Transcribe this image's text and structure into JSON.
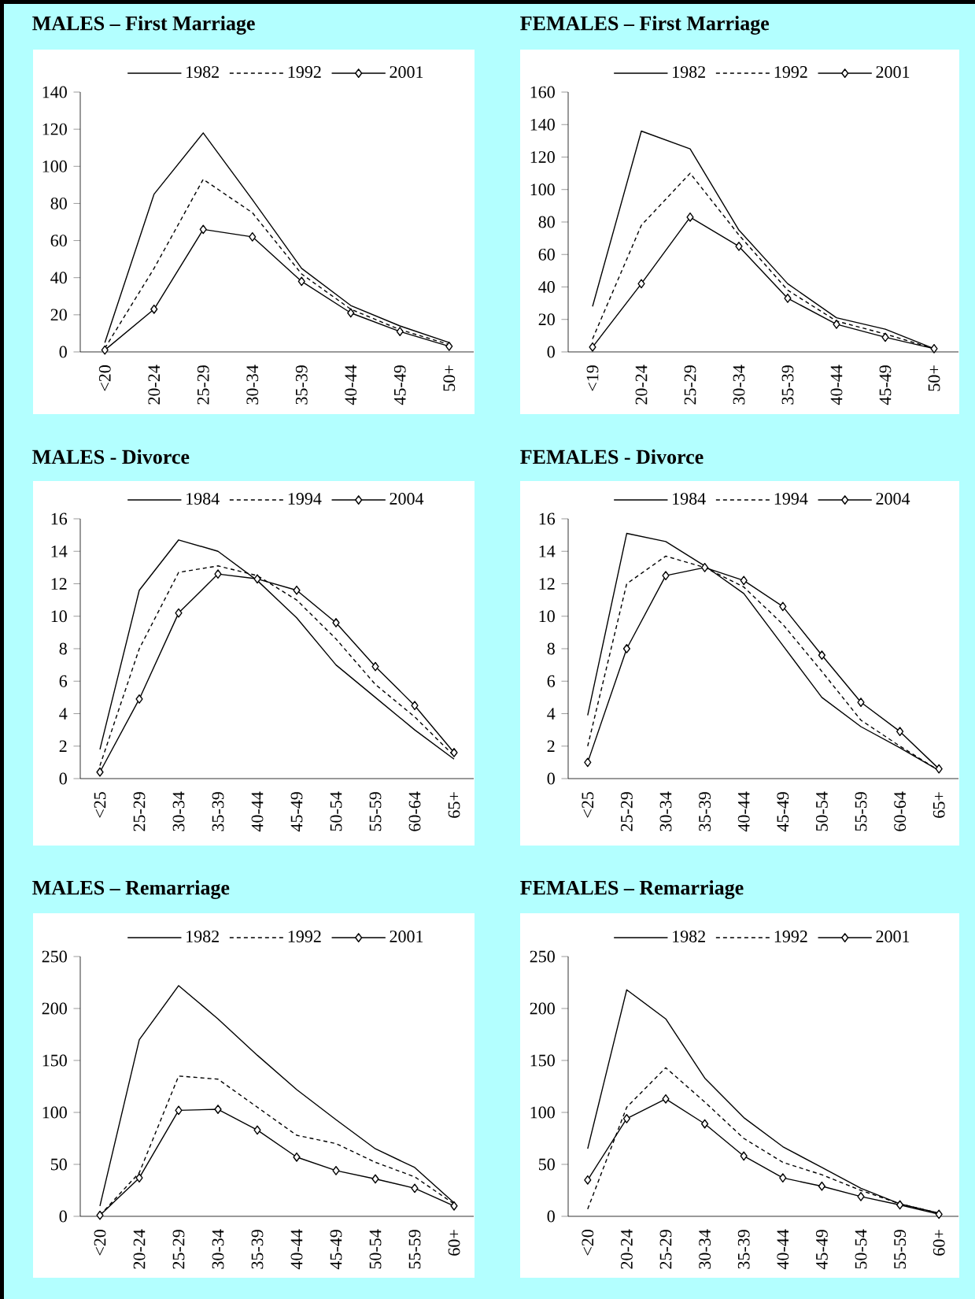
{
  "chart_data": [
    {
      "type": "line",
      "title": "MALES – First Marriage",
      "categories": [
        "<20",
        "20-24",
        "25-29",
        "30-34",
        "35-39",
        "40-44",
        "45-49",
        "50+"
      ],
      "ylim": [
        0,
        140
      ],
      "yticks": [
        0,
        20,
        40,
        60,
        80,
        100,
        120,
        140
      ],
      "legend": "top",
      "series": [
        {
          "name": "1982",
          "color": "#000000",
          "line_style": "solid",
          "marker": "none",
          "values": [
            5,
            85,
            118,
            82,
            45,
            25,
            14,
            5
          ]
        },
        {
          "name": "1992",
          "color": "#000000",
          "line_style": "dashed",
          "marker": "none",
          "values": [
            2,
            45,
            93,
            75,
            42,
            23,
            12,
            4
          ]
        },
        {
          "name": "2001",
          "color": "#000000",
          "line_style": "solid",
          "marker": "diamond",
          "values": [
            1,
            23,
            66,
            62,
            38,
            21,
            11,
            3
          ]
        }
      ]
    },
    {
      "type": "line",
      "title": "FEMALES – First Marriage",
      "categories": [
        "<19",
        "20-24",
        "25-29",
        "30-34",
        "35-39",
        "40-44",
        "45-49",
        "50+"
      ],
      "ylim": [
        0,
        160
      ],
      "yticks": [
        0,
        20,
        40,
        60,
        80,
        100,
        120,
        140,
        160
      ],
      "legend": "top",
      "series": [
        {
          "name": "1982",
          "color": "#000000",
          "line_style": "solid",
          "marker": "none",
          "values": [
            28,
            136,
            125,
            75,
            42,
            21,
            14,
            2
          ]
        },
        {
          "name": "1992",
          "color": "#000000",
          "line_style": "dashed",
          "marker": "none",
          "values": [
            8,
            78,
            110,
            72,
            38,
            19,
            11,
            2
          ]
        },
        {
          "name": "2001",
          "color": "#000000",
          "line_style": "solid",
          "marker": "diamond",
          "values": [
            3,
            42,
            83,
            65,
            33,
            17,
            9,
            2
          ]
        }
      ]
    },
    {
      "type": "line",
      "title": "MALES - Divorce",
      "categories": [
        "<25",
        "25-29",
        "30-34",
        "35-39",
        "40-44",
        "45-49",
        "50-54",
        "55-59",
        "60-64",
        "65+"
      ],
      "ylim": [
        0,
        16
      ],
      "yticks": [
        0,
        2,
        4,
        6,
        8,
        10,
        12,
        14,
        16
      ],
      "legend": "top",
      "series": [
        {
          "name": "1984",
          "color": "#000000",
          "line_style": "solid",
          "marker": "none",
          "values": [
            1.8,
            11.6,
            14.7,
            14.0,
            12.2,
            9.9,
            7.0,
            5.0,
            3.0,
            1.2
          ]
        },
        {
          "name": "1994",
          "color": "#000000",
          "line_style": "dashed",
          "marker": "none",
          "values": [
            0.8,
            8.0,
            12.7,
            13.1,
            12.5,
            11.0,
            8.6,
            5.8,
            3.8,
            1.4
          ]
        },
        {
          "name": "2004",
          "color": "#000000",
          "line_style": "solid",
          "marker": "diamond",
          "values": [
            0.4,
            4.9,
            10.2,
            12.6,
            12.3,
            11.6,
            9.6,
            6.9,
            4.5,
            1.6
          ]
        }
      ]
    },
    {
      "type": "line",
      "title": "FEMALES - Divorce",
      "categories": [
        "<25",
        "25-29",
        "30-34",
        "35-39",
        "40-44",
        "45-49",
        "50-54",
        "55-59",
        "60-64",
        "65+"
      ],
      "ylim": [
        0,
        16
      ],
      "yticks": [
        0,
        2,
        4,
        6,
        8,
        10,
        12,
        14,
        16
      ],
      "legend": "top",
      "series": [
        {
          "name": "1984",
          "color": "#000000",
          "line_style": "solid",
          "marker": "none",
          "values": [
            3.9,
            15.1,
            14.6,
            13.1,
            11.4,
            8.2,
            5.0,
            3.2,
            1.9,
            0.5
          ]
        },
        {
          "name": "1994",
          "color": "#000000",
          "line_style": "dashed",
          "marker": "none",
          "values": [
            2.0,
            12.0,
            13.7,
            13.0,
            11.8,
            9.5,
            6.6,
            3.6,
            2.0,
            0.5
          ]
        },
        {
          "name": "2004",
          "color": "#000000",
          "line_style": "solid",
          "marker": "diamond",
          "values": [
            1.0,
            8.0,
            12.5,
            13.0,
            12.2,
            10.6,
            7.6,
            4.7,
            2.9,
            0.6
          ]
        }
      ]
    },
    {
      "type": "line",
      "title": "MALES – Remarriage",
      "categories": [
        "<20",
        "20-24",
        "25-29",
        "30-34",
        "35-39",
        "40-44",
        "45-49",
        "50-54",
        "55-59",
        "60+"
      ],
      "ylim": [
        0,
        250
      ],
      "yticks": [
        0,
        50,
        100,
        150,
        200,
        250
      ],
      "legend": "top",
      "series": [
        {
          "name": "1982",
          "color": "#000000",
          "line_style": "solid",
          "marker": "none",
          "values": [
            10,
            170,
            222,
            190,
            155,
            122,
            93,
            65,
            47,
            13
          ]
        },
        {
          "name": "1992",
          "color": "#000000",
          "line_style": "dashed",
          "marker": "none",
          "values": [
            1,
            42,
            135,
            132,
            105,
            78,
            70,
            52,
            38,
            12
          ]
        },
        {
          "name": "2001",
          "color": "#000000",
          "line_style": "solid",
          "marker": "diamond",
          "values": [
            1,
            37,
            102,
            103,
            83,
            57,
            44,
            36,
            27,
            10
          ]
        }
      ]
    },
    {
      "type": "line",
      "title": "FEMALES – Remarriage",
      "categories": [
        "<20",
        "20-24",
        "25-29",
        "30-34",
        "35-39",
        "40-44",
        "45-49",
        "50-54",
        "55-59",
        "60+"
      ],
      "ylim": [
        0,
        250
      ],
      "yticks": [
        0,
        50,
        100,
        150,
        200,
        250
      ],
      "legend": "top",
      "series": [
        {
          "name": "1982",
          "color": "#000000",
          "line_style": "solid",
          "marker": "none",
          "values": [
            65,
            218,
            190,
            133,
            95,
            67,
            47,
            27,
            12,
            3
          ]
        },
        {
          "name": "1992",
          "color": "#000000",
          "line_style": "dashed",
          "marker": "none",
          "values": [
            7,
            105,
            143,
            110,
            75,
            52,
            40,
            25,
            12,
            3
          ]
        },
        {
          "name": "2001",
          "color": "#000000",
          "line_style": "solid",
          "marker": "diamond",
          "values": [
            35,
            94,
            113,
            89,
            58,
            37,
            29,
            19,
            11,
            2
          ]
        }
      ]
    }
  ]
}
